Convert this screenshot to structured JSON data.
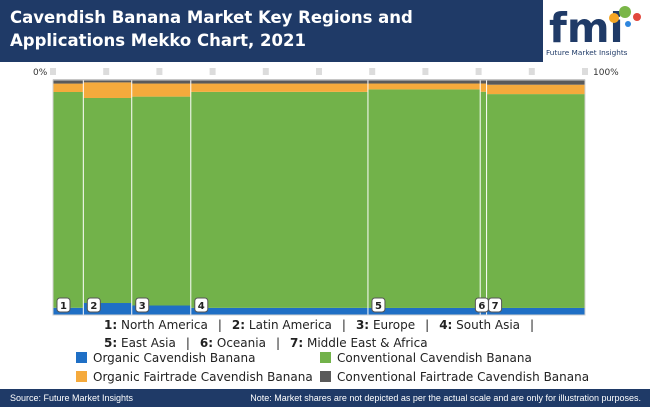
{
  "title": "Cavendish Banana Market Key Regions and Applications Mekko Chart, 2021",
  "logo": {
    "text": "fmi",
    "caption": "Future Market Insights"
  },
  "axis": {
    "left_label": "0%",
    "right_label": "100%"
  },
  "region_key": [
    {
      "num": "1:",
      "name": "North America"
    },
    {
      "num": "2:",
      "name": "Latin America"
    },
    {
      "num": "3:",
      "name": "Europe"
    },
    {
      "num": "4:",
      "name": "South Asia"
    },
    {
      "num": "5:",
      "name": "East Asia"
    },
    {
      "num": "6:",
      "name": "Oceania"
    },
    {
      "num": "7:",
      "name": "Middle East & Africa"
    }
  ],
  "separator": "|",
  "series_legend": [
    {
      "name": "Organic Cavendish Banana",
      "color": "#1f6fc5"
    },
    {
      "name": "Conventional Cavendish Banana",
      "color": "#72b24a"
    },
    {
      "name": "Organic Fairtrade Cavendish Banana",
      "color": "#f5aa3c"
    },
    {
      "name": "Conventional Fairtrade Cavendish Banana",
      "color": "#5a5a5a"
    }
  ],
  "footer": {
    "source": "Source: Future Market Insights",
    "note": "Note: Market shares are not depicted as per the actual scale and are only for illustration purposes."
  },
  "chart_data": {
    "type": "bar",
    "subtype": "mekko",
    "title": "Cavendish Banana Market Key Regions and Applications Mekko Chart, 2021",
    "x_axis_range": [
      0,
      100
    ],
    "x_axis_labels": [
      "0%",
      "100%"
    ],
    "grid": false,
    "categories": [
      "1",
      "2",
      "3",
      "4",
      "5",
      "6",
      "7"
    ],
    "widths": [
      5.7,
      9.1,
      11.1,
      33.3,
      21.1,
      1.2,
      18.5
    ],
    "series": [
      {
        "name": "Organic Cavendish Banana",
        "color": "#1f6fc5",
        "values": [
          3,
          5,
          4,
          3,
          3,
          3,
          3
        ]
      },
      {
        "name": "Conventional Cavendish Banana",
        "color": "#72b24a",
        "values": [
          90,
          85.5,
          88,
          91,
          93,
          92,
          91
        ]
      },
      {
        "name": "Organic Fairtrade Cavendish Banana",
        "color": "#f5aa3c",
        "values": [
          3.5,
          6.5,
          5.5,
          3.5,
          2.5,
          3.5,
          4
        ]
      },
      {
        "name": "Conventional Fairtrade Cavendish Banana",
        "color": "#5a5a5a",
        "values": [
          1.5,
          1,
          1.5,
          1.5,
          1.5,
          1.5,
          2
        ]
      }
    ]
  }
}
